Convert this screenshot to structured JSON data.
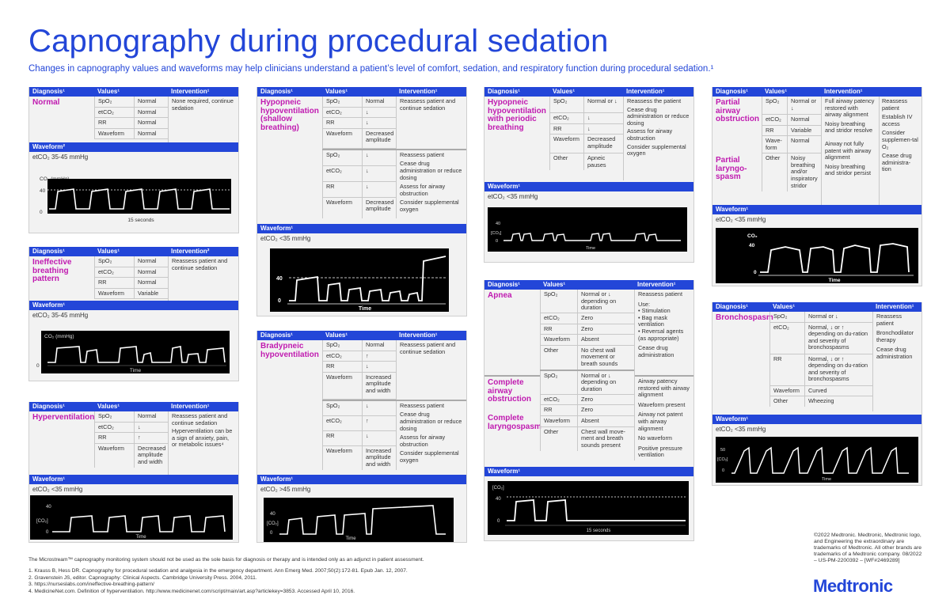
{
  "title": "Capnography during procedural sedation",
  "subtitle": "Changes in capnography values and waveforms may help clinicians understand a patient’s level of comfort, sedation, and respiratory function during procedural sedation.¹",
  "headers": {
    "diagnosis": "Diagnosis¹",
    "values": "Values¹",
    "intervention": "Intervention¹",
    "intervention2": "Intervention²",
    "waveform": "Waveform¹",
    "waveform2": "Waveform²"
  },
  "labels": {
    "spo2": "SpO₂",
    "etco2": "etCO₂",
    "rr": "RR",
    "waveform": "Waveform",
    "other": "Other",
    "waveform_short": "Wave-form"
  },
  "normal": {
    "diagnosis": "Normal",
    "values": [
      "Normal",
      "Normal",
      "Normal",
      "Normal"
    ],
    "intervention": "None required, continue sedation",
    "etco2_text": "etCO₂ 35-45 mmHg",
    "graph_ylabel": "CO₂ (mmHg)",
    "graph_y40": "40",
    "graph_y0": "0",
    "graph_x": "15 seconds"
  },
  "ineffective": {
    "diagnosis": "Ineffective breathing pattern",
    "values": [
      "Normal",
      "Normal",
      "Normal",
      "Variable"
    ],
    "intervention": "Reassess patient and continue sedation",
    "etco2_text": "etCO₂ 35-45 mmHg",
    "graph_ylabel": "CO₂ (mmHg)",
    "graph_y0": "0",
    "graph_x": "Time"
  },
  "hyperventilation": {
    "diagnosis": "Hyperventilation",
    "values": [
      "Normal",
      "↓",
      "↑",
      "Decreased amplitude and width"
    ],
    "intervention1": "Reassess patient and continue sedation",
    "intervention2": "Hyperventilation can be a sign of anxiety, pain, or metabolic issues⁴",
    "etco2_text": "etCO₂ <35 mmHg",
    "graph_y40": "40",
    "graph_ylabel": "[CO₂]",
    "graph_y0": "0",
    "graph_x": "Time"
  },
  "hypopneic": {
    "diagnosis": "Hypopneic hypoventilation (shallow breathing)",
    "values_a": [
      "Normal",
      "↓",
      "↓",
      "Decreased amplitude"
    ],
    "values_b": [
      "↓",
      "↓",
      "↓",
      "Decreased amplitude"
    ],
    "intervention_a": "Reassess patient and continue sedation",
    "intervention_b": [
      "Reassess patient",
      "Cease drug administration or reduce dosing",
      "Assess for airway obstruction",
      "Consider supplemental oxygen"
    ],
    "etco2_text": "etCO₂ <35 mmHg",
    "graph_y40": "40",
    "graph_y0": "0",
    "graph_x": "Time"
  },
  "bradypneic": {
    "diagnosis": "Bradypneic hypoventilation",
    "values_a": [
      "Normal",
      "↑",
      "↓",
      "Increased amplitude and width"
    ],
    "values_b": [
      "↓",
      "↑",
      "↓",
      "Increased amplitude and width"
    ],
    "intervention_a": "Reassess patient and continue sedation",
    "intervention_b": [
      "Reassess patient",
      "Cease drug administration or reduce dosing",
      "Assess for airway obstruction",
      "Consider supplemental oxygen"
    ],
    "etco2_text": "etCO₂ >45 mmHg",
    "graph_y40": "40",
    "graph_ylabel": "[CO₂]",
    "graph_y0": "0",
    "graph_x": "Time"
  },
  "periodic": {
    "diagnosis": "Hypopneic hypoventilation with periodic breathing",
    "values": [
      "Normal or ↓",
      "↓",
      "↓",
      "Decreased amplitude",
      "Apneic pauses"
    ],
    "intervention": [
      "Reassess the patient",
      "Cease drug administration or reduce dosing",
      "Assess for airway obstruction",
      "Consider supplemental oxygen"
    ],
    "etco2_text": "etCO₂ <35 mmHg",
    "graph_y40": "40",
    "graph_ylabel": "[CO₂]",
    "graph_y0": "0",
    "graph_x": "Time"
  },
  "apnea": {
    "diagnosis": "Apnea",
    "values": [
      "Normal or ↓ depending on duration",
      "Zero",
      "Zero",
      "Absent",
      "No chest wall movement or breath sounds"
    ],
    "intervention": [
      "Reassess patient",
      "Use:",
      "• Stimulation",
      "• Bag mask ventilation",
      "• Reversal agents (as appropriate)",
      "Cease drug administration"
    ],
    "complete_obstruction": "Complete airway obstruction",
    "complete_laryngospasm": "Complete laryngospasm",
    "values2": [
      "Normal or ↓ depending on duration",
      "Zero",
      "Zero",
      "Absent",
      "Chest wall move-ment and breath sounds present"
    ],
    "intervention2": [
      "Airway patency restored with airway alignment",
      "Waveform present",
      "Airway not patent with airway alignment",
      "No waveform",
      "Positive pressure ventilation"
    ],
    "graph_ylabel": "[CO₂]",
    "graph_y40": "40",
    "graph_y0": "0",
    "graph_x": "15 seconds"
  },
  "partial": {
    "diagnosis1": "Partial airway obstruction",
    "diagnosis2": "Partial laryngo-spasm",
    "values": [
      "Normal or ↓",
      "Normal",
      "Variable",
      "Normal",
      "Noisy breathing and/or inspiratory stridor"
    ],
    "intervention": [
      "Full airway patency restored with airway alignment",
      "Noisy breathing and stridor resolve",
      "Airway not fully patent with airway alignment",
      "Noisy breathing and stridor persist"
    ],
    "intervention_right": [
      "Reassess patient",
      "Establish IV access",
      "Consider supplemen-tal O₂",
      "Cease drug administra-tion"
    ],
    "etco2_text": "etCO₂ <35 mmHg",
    "graph_ylabel": "CO₂",
    "graph_y40": "40",
    "graph_y0": "0",
    "graph_x": "Time"
  },
  "bronchospasm": {
    "diagnosis": "Bronchospasm",
    "values": [
      "Normal or ↓",
      "Normal, ↓ or ↑ depending on du-ration and severity of bronchospasms",
      "Normal, ↓ or ↑ depending on du-ration and severity of bronchospasms",
      "Curved",
      "Wheezing"
    ],
    "intervention": [
      "Reassess patient",
      "Bronchodilator therapy",
      "Cease drug administration"
    ],
    "etco2_text": "etCO₂ <35 mmHg",
    "graph_y50": "50",
    "graph_ylabel": "[CO₂]",
    "graph_y0": "0",
    "graph_x": "Time"
  },
  "disclaimer": "The Microstream™ capnography monitoring system should not be used as the sole basis for diagnosis or therapy and is intended only as an adjunct in patient assessment.",
  "references": [
    "1. Krauss B, Hess DR. Capnography for procedural sedation and analgesia in the emergency department. Ann Emerg Med. 2007;50(2):172-81. Epub Jan. 12, 2007.",
    "2. Gravenstein JS, editor. Capnography: Clinical Aspects. Cambridge University Press. 2004, 2011.",
    "3. https://nurseslabs.com/ineffective-breathing-pattern/",
    "4. MedicineNet.com. Definition of hyperventilation. http://www.medicinenet.com/script/main/art.asp?articlekey=3853. Accessed April 10, 2016."
  ],
  "copyright": "©2022 Medtronic. Medtronic, Medtronic logo, and Engineering the extraordinary are trademarks of Medtronic. All other brands are trademarks of a Medtronic company. 08/2022 – US-PM-2200392 – [WF#2469289]",
  "logo": "Medtronic",
  "colors": {
    "accent": "#2346d8",
    "diagnosis": "#c01bb0",
    "panel": "#f2f2f2"
  }
}
